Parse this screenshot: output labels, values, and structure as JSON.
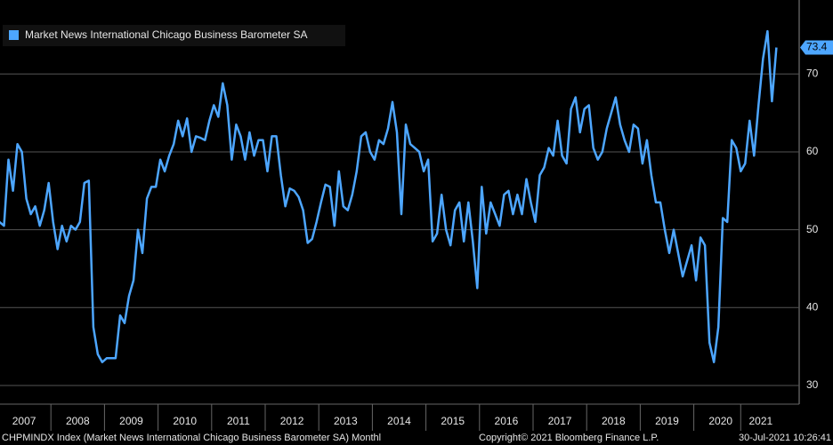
{
  "chart_data": {
    "type": "line",
    "categories": [
      null,
      null,
      null,
      null,
      null,
      null,
      "2007",
      null,
      null,
      null,
      null,
      null,
      null,
      null,
      null,
      null,
      null,
      null,
      "2008",
      null,
      null,
      null,
      null,
      null,
      null,
      null,
      null,
      null,
      null,
      null,
      "2009",
      null,
      null,
      null,
      null,
      null,
      null,
      null,
      null,
      null,
      null,
      null,
      "2010",
      null,
      null,
      null,
      null,
      null,
      null,
      null,
      null,
      null,
      null,
      null,
      "2011",
      null,
      null,
      null,
      null,
      null,
      null,
      null,
      null,
      null,
      null,
      null,
      "2012",
      null,
      null,
      null,
      null,
      null,
      null,
      null,
      null,
      null,
      null,
      null,
      "2013",
      null,
      null,
      null,
      null,
      null,
      null,
      null,
      null,
      null,
      null,
      null,
      "2014",
      null,
      null,
      null,
      null,
      null,
      null,
      null,
      null,
      null,
      null,
      null,
      "2015",
      null,
      null,
      null,
      null,
      null,
      null,
      null,
      null,
      null,
      null,
      null,
      "2016",
      null,
      null,
      null,
      null,
      null,
      null,
      null,
      null,
      null,
      null,
      null,
      "2017",
      null,
      null,
      null,
      null,
      null,
      null,
      null,
      null,
      null,
      null,
      null,
      "2018",
      null,
      null,
      null,
      null,
      null,
      null,
      null,
      null,
      null,
      null,
      null,
      "2019",
      null,
      null,
      null,
      null,
      null,
      null,
      null,
      null,
      null,
      null,
      null,
      "2020",
      null,
      null,
      null,
      null,
      null,
      null,
      null,
      null,
      "2021",
      null,
      null,
      null
    ],
    "series": [
      {
        "name": "Market News International Chicago Business Barometer SA",
        "color": "#4da6ff",
        "values": [
          51,
          50.5,
          59,
          55,
          61,
          60,
          54,
          52,
          53,
          50.5,
          52.5,
          56,
          51,
          47.5,
          50.5,
          48.5,
          50.5,
          50,
          51,
          56,
          56.3,
          37.5,
          34,
          33,
          33.5,
          33.5,
          33.5,
          39,
          38,
          41.5,
          43.5,
          50,
          47,
          54,
          55.5,
          55.5,
          59,
          57.5,
          59.5,
          61,
          64,
          62,
          64.3,
          60,
          62,
          61.8,
          61.5,
          64,
          66,
          64.5,
          68.8,
          66,
          59,
          63.5,
          62,
          59,
          62.5,
          59.5,
          61.5,
          61.5,
          57.5,
          62,
          62,
          57,
          53,
          55.3,
          55,
          54.2,
          52.5,
          48.3,
          48.8,
          51,
          53.5,
          55.8,
          55.5,
          50.5,
          57.5,
          53,
          52.5,
          54.5,
          57.5,
          62,
          62.5,
          60,
          59,
          61.5,
          61,
          63,
          66.4,
          62.5,
          52,
          63.5,
          61,
          60.5,
          60,
          57.5,
          59,
          48.5,
          49.5,
          54.5,
          50,
          48,
          52.5,
          53.5,
          48.5,
          53.5,
          48.5,
          42.5,
          55.5,
          49.5,
          53.5,
          52,
          50.5,
          54.5,
          55,
          52,
          54.5,
          52,
          56.5,
          53.5,
          51,
          57,
          58,
          60.5,
          59.5,
          64,
          59.5,
          58.5,
          65.5,
          67,
          62.5,
          65.5,
          66,
          60.5,
          59,
          60,
          63,
          65,
          67,
          63.5,
          61.5,
          60,
          63.5,
          63,
          58.5,
          61.5,
          57,
          53.5,
          53.5,
          50,
          47,
          50,
          47,
          44,
          46,
          48,
          43.5,
          49,
          48,
          35.5,
          33,
          37.5,
          51.5,
          51,
          61.5,
          60.5,
          57.5,
          58.5,
          64,
          59.5,
          66,
          72,
          75.5,
          66.5,
          73.4
        ]
      }
    ],
    "ylim": [
      27.6,
      79.5
    ],
    "yticks": [
      30,
      40,
      50,
      60,
      70
    ],
    "grid": true,
    "footer": {
      "ticker": "CHPMINDX Index (Market News International Chicago Business Barometer SA)  Monthl",
      "copyright": "Copyright© 2021 Bloomberg Finance L.P.",
      "timestamp": "30-Jul-2021 10:26:41"
    }
  }
}
